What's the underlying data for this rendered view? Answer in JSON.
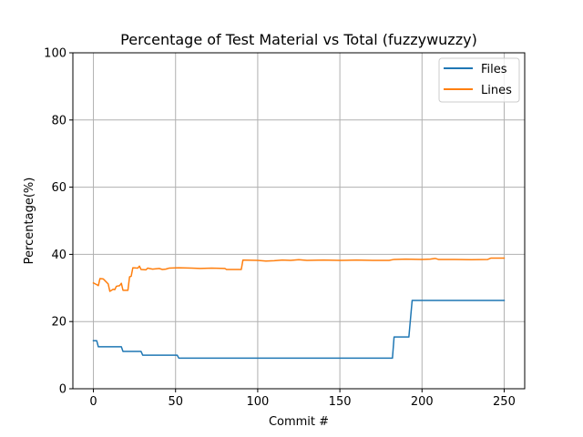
{
  "chart_data": {
    "type": "line",
    "title": "Percentage of Test Material vs Total (fuzzywuzzy)",
    "xlabel": "Commit #",
    "ylabel": "Percentage(%)",
    "xlim": [
      -12.5,
      262.5
    ],
    "ylim": [
      0,
      100
    ],
    "xticks": [
      0,
      50,
      100,
      150,
      200,
      250
    ],
    "yticks": [
      0,
      20,
      40,
      60,
      80,
      100
    ],
    "grid": true,
    "legend_position": "top-right",
    "series": [
      {
        "name": "Files",
        "color": "#1f77b4",
        "points": [
          [
            0,
            14.3
          ],
          [
            2,
            14.3
          ],
          [
            3,
            12.5
          ],
          [
            17,
            12.5
          ],
          [
            18,
            11.1
          ],
          [
            29,
            11.1
          ],
          [
            30,
            10.0
          ],
          [
            51,
            10.0
          ],
          [
            52,
            9.1
          ],
          [
            182,
            9.1
          ],
          [
            183,
            15.4
          ],
          [
            192,
            15.4
          ],
          [
            194,
            26.3
          ],
          [
            250,
            26.3
          ]
        ]
      },
      {
        "name": "Lines",
        "color": "#ff7f0e",
        "points": [
          [
            0,
            31.5
          ],
          [
            2,
            31.0
          ],
          [
            3,
            30.7
          ],
          [
            4,
            32.8
          ],
          [
            6,
            32.7
          ],
          [
            7,
            32.2
          ],
          [
            9,
            31.2
          ],
          [
            10,
            29.0
          ],
          [
            12,
            29.6
          ],
          [
            13,
            29.5
          ],
          [
            14,
            30.5
          ],
          [
            16,
            30.7
          ],
          [
            17,
            31.4
          ],
          [
            18,
            29.3
          ],
          [
            21,
            29.3
          ],
          [
            22,
            33.3
          ],
          [
            23,
            33.5
          ],
          [
            24,
            36.0
          ],
          [
            27,
            35.9
          ],
          [
            28,
            36.5
          ],
          [
            29,
            35.5
          ],
          [
            32,
            35.4
          ],
          [
            33,
            35.9
          ],
          [
            36,
            35.6
          ],
          [
            40,
            35.8
          ],
          [
            42,
            35.5
          ],
          [
            44,
            35.6
          ],
          [
            46,
            35.9
          ],
          [
            52,
            36.0
          ],
          [
            60,
            35.9
          ],
          [
            65,
            35.8
          ],
          [
            72,
            35.9
          ],
          [
            80,
            35.8
          ],
          [
            81,
            35.5
          ],
          [
            90,
            35.5
          ],
          [
            91,
            38.3
          ],
          [
            100,
            38.2
          ],
          [
            105,
            38.0
          ],
          [
            110,
            38.1
          ],
          [
            115,
            38.3
          ],
          [
            120,
            38.2
          ],
          [
            125,
            38.4
          ],
          [
            130,
            38.2
          ],
          [
            140,
            38.3
          ],
          [
            150,
            38.2
          ],
          [
            160,
            38.3
          ],
          [
            170,
            38.2
          ],
          [
            180,
            38.2
          ],
          [
            183,
            38.5
          ],
          [
            190,
            38.6
          ],
          [
            200,
            38.5
          ],
          [
            205,
            38.6
          ],
          [
            208,
            38.8
          ],
          [
            210,
            38.5
          ],
          [
            220,
            38.5
          ],
          [
            230,
            38.4
          ],
          [
            240,
            38.5
          ],
          [
            242,
            38.9
          ],
          [
            250,
            38.9
          ]
        ]
      }
    ]
  }
}
